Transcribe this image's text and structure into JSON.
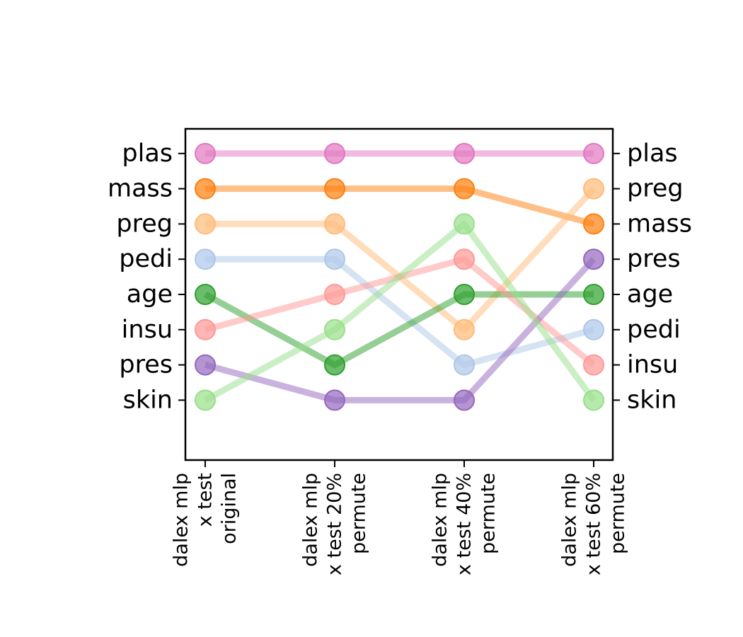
{
  "chart_data": {
    "type": "line",
    "title": "",
    "xlabel": "",
    "ylabel": "",
    "grid": false,
    "categories": [
      [
        "dalex mlp",
        "x test",
        "original"
      ],
      [
        "dalex mlp",
        "x test 20%",
        "permute"
      ],
      [
        "dalex mlp",
        "x test 40%",
        "permute"
      ],
      [
        "dalex mlp",
        "x test 60%",
        "permute"
      ]
    ],
    "left_rank_labels": [
      "plas",
      "mass",
      "preg",
      "pedi",
      "age",
      "insu",
      "pres",
      "skin"
    ],
    "right_rank_labels": [
      "plas",
      "preg",
      "mass",
      "pres",
      "age",
      "pedi",
      "insu",
      "skin"
    ],
    "ylim": [
      0.3,
      9.7
    ],
    "series": [
      {
        "feature": "plas",
        "color": "#e377c2",
        "values": [
          1,
          1,
          1,
          1
        ]
      },
      {
        "feature": "mass",
        "color": "#ff7f0e",
        "values": [
          2,
          2,
          2,
          3
        ]
      },
      {
        "feature": "preg",
        "color": "#ffbb78",
        "values": [
          3,
          3,
          6,
          2
        ]
      },
      {
        "feature": "pedi",
        "color": "#aec7e8",
        "values": [
          4,
          4,
          7,
          6
        ]
      },
      {
        "feature": "age",
        "color": "#2ca02c",
        "values": [
          5,
          7,
          5,
          5
        ]
      },
      {
        "feature": "insu",
        "color": "#ff9896",
        "values": [
          6,
          5,
          4,
          7
        ]
      },
      {
        "feature": "pres",
        "color": "#9467bd",
        "values": [
          7,
          8,
          8,
          4
        ]
      },
      {
        "feature": "skin",
        "color": "#98df8a",
        "values": [
          8,
          6,
          3,
          8
        ]
      }
    ]
  }
}
